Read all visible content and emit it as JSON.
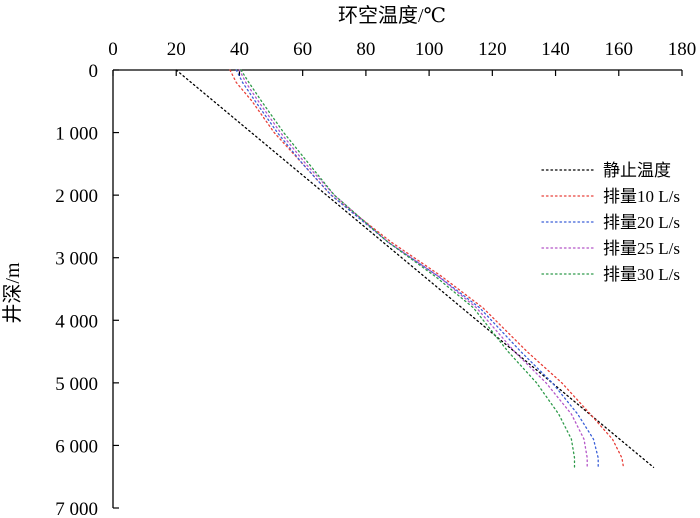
{
  "chart_data": {
    "type": "line",
    "xlabel": "环空温度/℃",
    "ylabel": "井深/m",
    "xlim": [
      0,
      180
    ],
    "ylim": [
      0,
      7000
    ],
    "x_axis_position": "top",
    "y_axis_inverted": true,
    "x_ticks": [
      0,
      20,
      40,
      60,
      80,
      100,
      120,
      140,
      160,
      180
    ],
    "y_ticks": [
      0,
      1000,
      2000,
      3000,
      4000,
      5000,
      6000,
      7000
    ],
    "y_tick_labels": [
      "0",
      "1 000",
      "2 000",
      "3 000",
      "4 000",
      "5 000",
      "6 000",
      "7 000"
    ],
    "line_style": "dotted",
    "grid": false,
    "legend_position": "right",
    "series": [
      {
        "name": "静止温度",
        "color": "#000000",
        "points": [
          [
            20,
            0
          ],
          [
            171,
            6350
          ]
        ]
      },
      {
        "name": "排量10 L/s",
        "color": "#e8403a",
        "points": [
          [
            37,
            0
          ],
          [
            39,
            200
          ],
          [
            44,
            500
          ],
          [
            51,
            1000
          ],
          [
            60,
            1500
          ],
          [
            69,
            2000
          ],
          [
            88,
            2750
          ],
          [
            104,
            3300
          ],
          [
            117,
            3800
          ],
          [
            131,
            4500
          ],
          [
            142,
            5000
          ],
          [
            151,
            5500
          ],
          [
            158,
            5900
          ],
          [
            161,
            6200
          ],
          [
            161.5,
            6350
          ]
        ]
      },
      {
        "name": "排量20 L/s",
        "color": "#3a5fd8",
        "points": [
          [
            39,
            0
          ],
          [
            41,
            200
          ],
          [
            45,
            500
          ],
          [
            52,
            1000
          ],
          [
            60,
            1500
          ],
          [
            69,
            2000
          ],
          [
            87,
            2750
          ],
          [
            103,
            3300
          ],
          [
            116,
            3800
          ],
          [
            129,
            4500
          ],
          [
            139,
            5000
          ],
          [
            147,
            5500
          ],
          [
            152,
            5900
          ],
          [
            153.5,
            6200
          ],
          [
            153.5,
            6350
          ]
        ]
      },
      {
        "name": "排量25 L/s",
        "color": "#b455c8",
        "points": [
          [
            40,
            0
          ],
          [
            42,
            200
          ],
          [
            46,
            500
          ],
          [
            53,
            1000
          ],
          [
            61,
            1500
          ],
          [
            70,
            2000
          ],
          [
            87,
            2750
          ],
          [
            103,
            3300
          ],
          [
            115,
            3800
          ],
          [
            127,
            4500
          ],
          [
            137,
            5000
          ],
          [
            145,
            5500
          ],
          [
            149,
            5900
          ],
          [
            150,
            6200
          ],
          [
            150,
            6350
          ]
        ]
      },
      {
        "name": "排量30 L/s",
        "color": "#2e9a4a",
        "points": [
          [
            40.5,
            0
          ],
          [
            43,
            200
          ],
          [
            47,
            500
          ],
          [
            54,
            1000
          ],
          [
            62,
            1500
          ],
          [
            70,
            2000
          ],
          [
            87,
            2750
          ],
          [
            102,
            3300
          ],
          [
            114,
            3800
          ],
          [
            125,
            4500
          ],
          [
            134,
            5000
          ],
          [
            141,
            5500
          ],
          [
            145,
            5900
          ],
          [
            146,
            6200
          ],
          [
            146,
            6350
          ]
        ]
      }
    ]
  }
}
